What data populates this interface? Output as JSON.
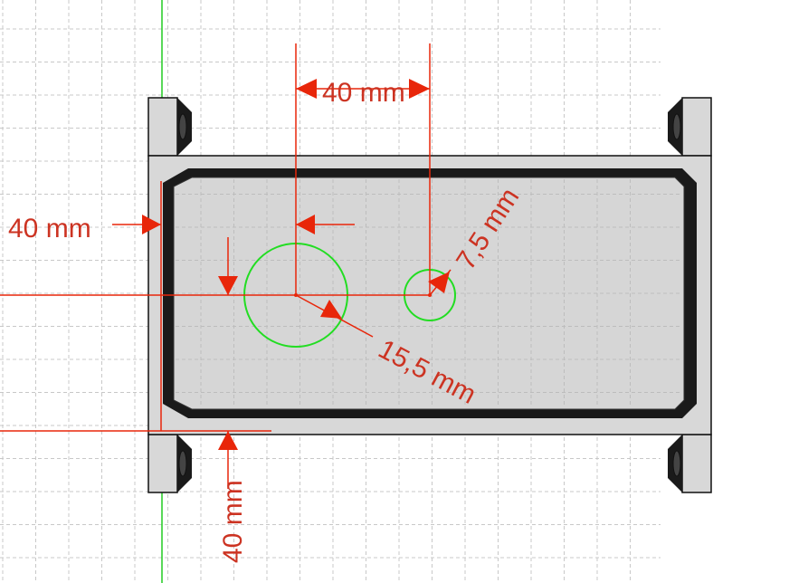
{
  "dimensions": {
    "horizontal_spacing": "40 mm",
    "left_offset": "40 mm",
    "bottom_offset": "40 mm",
    "large_hole_radius": "15,5 mm",
    "small_hole_radius": "7,5 mm"
  },
  "colors": {
    "dimension": "#e8260a",
    "dimension_text": "#cc3322",
    "axis_vertical": "#22cc22",
    "circles": "#22dd22",
    "part_fill": "#d8d8d8",
    "edge": "#111111",
    "grid": "#c8c8c8"
  }
}
